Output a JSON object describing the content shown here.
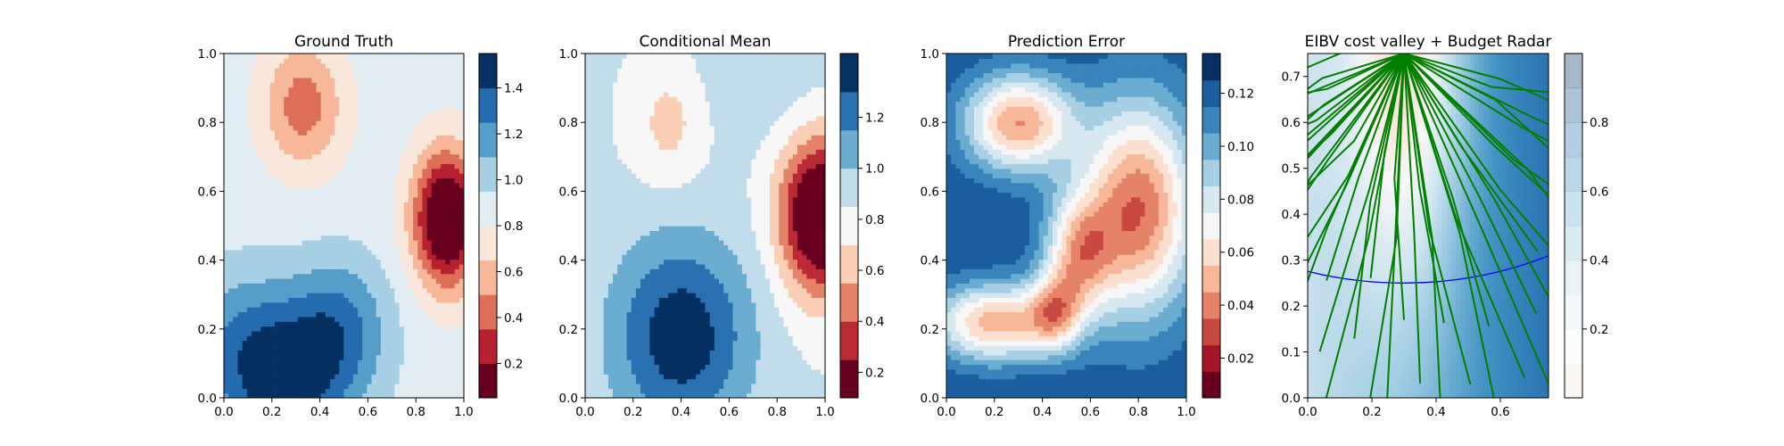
{
  "chart_data": [
    {
      "type": "heatmap",
      "title": "Ground Truth",
      "xlabel": "",
      "ylabel": "",
      "xlim": [
        0,
        1
      ],
      "ylim": [
        0,
        1
      ],
      "x_ticks": [
        "0.0",
        "0.2",
        "0.4",
        "0.6",
        "0.8",
        "1.0"
      ],
      "y_ticks": [
        "0.0",
        "0.2",
        "0.4",
        "0.6",
        "0.8",
        "1.0"
      ],
      "colormap": "RdBu",
      "levels": [
        0.05,
        0.2,
        0.35,
        0.5,
        0.65,
        0.8,
        0.95,
        1.1,
        1.25,
        1.4,
        1.55
      ],
      "colorbar_ticks": [
        "0.2",
        "0.4",
        "0.6",
        "0.8",
        "1.0",
        "1.2",
        "1.4"
      ],
      "colorbar_tick_values": [
        0.2,
        0.4,
        0.6,
        0.8,
        1.0,
        1.2,
        1.4
      ],
      "field_features": [
        {
          "x": 0.93,
          "y": 0.52,
          "amp": -1.0,
          "sx": 0.1,
          "sy": 0.14
        },
        {
          "x": 0.33,
          "y": 0.85,
          "amp": -0.45,
          "sx": 0.12,
          "sy": 0.13
        },
        {
          "x": 0.25,
          "y": 0.05,
          "amp": 0.6,
          "sx": 0.2,
          "sy": 0.16
        },
        {
          "x": 0.48,
          "y": 0.22,
          "amp": 0.35,
          "sx": 0.15,
          "sy": 0.14
        },
        {
          "x": 0.05,
          "y": 0.2,
          "amp": 0.2,
          "sx": 0.15,
          "sy": 0.15
        }
      ],
      "field_base": 0.87
    },
    {
      "type": "heatmap",
      "title": "Conditional Mean",
      "xlabel": "",
      "ylabel": "",
      "xlim": [
        0,
        1
      ],
      "ylim": [
        0,
        1
      ],
      "x_ticks": [
        "0.0",
        "0.2",
        "0.4",
        "0.6",
        "0.8",
        "1.0"
      ],
      "y_ticks": [
        "0.0",
        "0.2",
        "0.4",
        "0.6",
        "0.8",
        "1.0"
      ],
      "colormap": "RdBu",
      "levels": [
        0.1,
        0.25,
        0.4,
        0.55,
        0.7,
        0.85,
        1.0,
        1.15,
        1.3,
        1.45
      ],
      "colorbar_ticks": [
        "0.2",
        "0.4",
        "0.6",
        "0.8",
        "1.0",
        "1.2"
      ],
      "colorbar_tick_values": [
        0.2,
        0.4,
        0.6,
        0.8,
        1.0,
        1.2
      ],
      "field_features": [
        {
          "x": 0.98,
          "y": 0.53,
          "amp": -0.95,
          "sx": 0.12,
          "sy": 0.16
        },
        {
          "x": 0.4,
          "y": 0.18,
          "amp": 0.55,
          "sx": 0.2,
          "sy": 0.2
        },
        {
          "x": 0.35,
          "y": 0.8,
          "amp": -0.22,
          "sx": 0.1,
          "sy": 0.12
        },
        {
          "x": 0.75,
          "y": 0.95,
          "amp": 0.1,
          "sx": 0.2,
          "sy": 0.15
        }
      ],
      "field_base": 0.86
    },
    {
      "type": "heatmap",
      "title": "Prediction Error",
      "xlabel": "",
      "ylabel": "",
      "xlim": [
        0,
        1
      ],
      "ylim": [
        0,
        1
      ],
      "x_ticks": [
        "0.0",
        "0.2",
        "0.4",
        "0.6",
        "0.8",
        "1.0"
      ],
      "y_ticks": [
        "0.0",
        "0.2",
        "0.4",
        "0.6",
        "0.8",
        "1.0"
      ],
      "colormap": "RdBu",
      "levels": [
        0.005,
        0.015,
        0.025,
        0.035,
        0.045,
        0.055,
        0.065,
        0.075,
        0.085,
        0.095,
        0.105,
        0.115,
        0.125,
        0.135
      ],
      "colorbar_ticks": [
        "0.02",
        "0.04",
        "0.06",
        "0.08",
        "0.10",
        "0.12"
      ],
      "colorbar_tick_values": [
        0.02,
        0.04,
        0.06,
        0.08,
        0.1,
        0.12
      ],
      "field_features": [
        {
          "x": 0.8,
          "y": 0.55,
          "amp": -0.09,
          "sx": 0.17,
          "sy": 0.22
        },
        {
          "x": 0.3,
          "y": 0.8,
          "amp": -0.08,
          "sx": 0.16,
          "sy": 0.1
        },
        {
          "x": 0.2,
          "y": 0.22,
          "amp": -0.075,
          "sx": 0.18,
          "sy": 0.08
        },
        {
          "x": 0.55,
          "y": 0.42,
          "amp": -0.06,
          "sx": 0.1,
          "sy": 0.12
        },
        {
          "x": 0.45,
          "y": 0.25,
          "amp": -0.05,
          "sx": 0.08,
          "sy": 0.08
        }
      ],
      "field_base": 0.125
    },
    {
      "type": "heatmap",
      "title": "EIBV cost valley + Budget Radar",
      "xlabel": "",
      "ylabel": "",
      "xlim": [
        0,
        0.75
      ],
      "ylim": [
        0,
        0.75
      ],
      "x_ticks": [
        "0.0",
        "0.2",
        "0.4",
        "0.6"
      ],
      "x_tick_values": [
        0,
        0.2,
        0.4,
        0.6
      ],
      "y_ticks": [
        "0.0",
        "0.1",
        "0.2",
        "0.3",
        "0.4",
        "0.5",
        "0.6",
        "0.7"
      ],
      "y_tick_values": [
        0,
        0.1,
        0.2,
        0.3,
        0.4,
        0.5,
        0.6,
        0.7
      ],
      "colormap": "RdBu",
      "levels": [
        0,
        0.1,
        0.2,
        0.3,
        0.4,
        0.5,
        0.6,
        0.7,
        0.8,
        0.9,
        1.0
      ],
      "colorbar_ticks": [
        "0.2",
        "0.4",
        "0.6",
        "0.8"
      ],
      "colorbar_tick_values": [
        0.2,
        0.4,
        0.6,
        0.8
      ],
      "budget_ellipse": {
        "center": [
          0.3,
          0.75
        ],
        "rx": 0.95,
        "ry": 0.5,
        "color": "#0000ff"
      },
      "paths_origin": [
        0.3,
        0.75
      ],
      "path_color": "#008000",
      "path_angles_deg": [
        188,
        192,
        196,
        199,
        202,
        205,
        208,
        210,
        212,
        215,
        218,
        220,
        222,
        225,
        228,
        232,
        236,
        240,
        244,
        248,
        252,
        256,
        258,
        262,
        266,
        270,
        274,
        278,
        282,
        286,
        290,
        294,
        298,
        302,
        306,
        310,
        314,
        318,
        322,
        326,
        330,
        334,
        338,
        342,
        346,
        350
      ],
      "path_lengths": [
        0.38,
        0.55,
        0.7,
        0.48,
        0.62,
        0.75,
        0.52,
        0.68,
        0.8,
        0.58,
        0.72,
        0.85,
        0.5,
        0.66,
        0.78,
        0.6,
        0.74,
        0.88,
        0.55,
        0.7,
        0.82,
        0.64,
        0.5,
        0.76,
        0.9,
        0.58,
        0.72,
        0.86,
        0.6,
        0.75,
        0.9,
        0.65,
        0.8,
        0.95,
        0.7,
        0.85,
        0.6,
        0.8,
        0.9,
        0.7,
        0.85,
        0.6,
        0.75,
        0.9,
        0.65,
        0.5
      ]
    }
  ]
}
